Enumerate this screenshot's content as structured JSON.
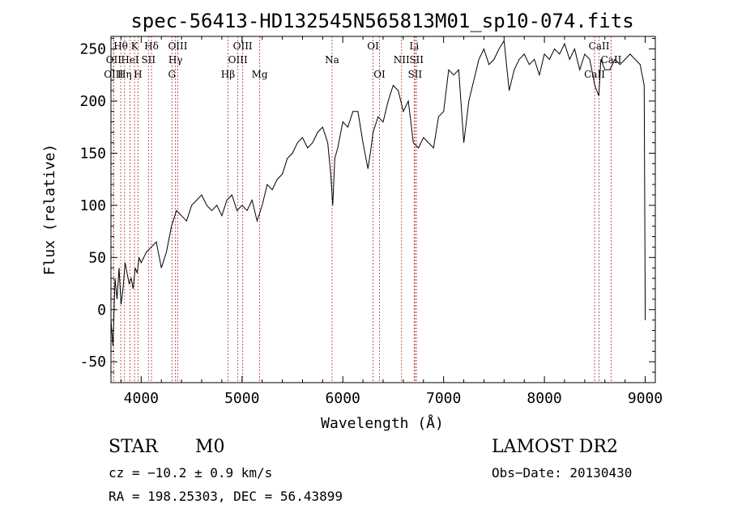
{
  "chart_data": {
    "type": "line",
    "title": "spec-56413-HD132545N565813M01_sp10-074.fits",
    "xlabel": "Wavelength (Å)",
    "ylabel": "Flux (relative)",
    "xlim": [
      3700,
      9100
    ],
    "ylim": [
      -70,
      262
    ],
    "x_ticks": [
      4000,
      5000,
      6000,
      7000,
      8000,
      9000
    ],
    "y_ticks": [
      -50,
      0,
      50,
      100,
      150,
      200,
      250
    ],
    "grid": false,
    "series": [
      {
        "x": [
          3700,
          3720,
          3740,
          3760,
          3780,
          3800,
          3820,
          3840,
          3860,
          3880,
          3900,
          3920,
          3940,
          3960,
          3980,
          4000,
          4050,
          4100,
          4150,
          4200,
          4250,
          4300,
          4350,
          4400,
          4450,
          4500,
          4550,
          4600,
          4650,
          4700,
          4750,
          4800,
          4850,
          4900,
          4950,
          5000,
          5050,
          5100,
          5150,
          5200,
          5250,
          5300,
          5350,
          5400,
          5450,
          5500,
          5550,
          5600,
          5650,
          5700,
          5750,
          5800,
          5850,
          5880,
          5900,
          5920,
          5950,
          6000,
          6050,
          6100,
          6150,
          6200,
          6250,
          6280,
          6300,
          6350,
          6400,
          6450,
          6500,
          6550,
          6600,
          6650,
          6700,
          6750,
          6800,
          6850,
          6900,
          6950,
          7000,
          7050,
          7100,
          7150,
          7200,
          7250,
          7300,
          7350,
          7400,
          7450,
          7500,
          7550,
          7600,
          7650,
          7700,
          7750,
          7800,
          7850,
          7900,
          7950,
          8000,
          8050,
          8100,
          8150,
          8200,
          8250,
          8300,
          8350,
          8400,
          8450,
          8500,
          8540,
          8560,
          8600,
          8650,
          8700,
          8750,
          8800,
          8850,
          8900,
          8950,
          8990,
          9000
        ],
        "y": [
          -10,
          -35,
          30,
          10,
          40,
          5,
          20,
          45,
          35,
          25,
          30,
          20,
          40,
          35,
          50,
          45,
          55,
          60,
          65,
          40,
          55,
          80,
          95,
          90,
          85,
          100,
          105,
          110,
          100,
          95,
          100,
          90,
          105,
          110,
          95,
          100,
          95,
          105,
          85,
          100,
          120,
          115,
          125,
          130,
          145,
          150,
          160,
          165,
          155,
          160,
          170,
          175,
          160,
          130,
          100,
          145,
          155,
          180,
          175,
          190,
          190,
          160,
          135,
          155,
          170,
          185,
          180,
          200,
          215,
          210,
          190,
          200,
          160,
          155,
          165,
          160,
          155,
          185,
          190,
          230,
          225,
          230,
          160,
          200,
          220,
          240,
          250,
          235,
          240,
          250,
          258,
          210,
          230,
          240,
          245,
          235,
          240,
          225,
          245,
          240,
          250,
          245,
          255,
          240,
          250,
          230,
          245,
          240,
          215,
          205,
          240,
          230,
          230,
          240,
          235,
          240,
          245,
          240,
          235,
          215,
          -10
        ]
      }
    ],
    "lines": [
      {
        "label": "Hθ",
        "x": 3797,
        "row": 0
      },
      {
        "label": "K",
        "x": 3934,
        "row": 0
      },
      {
        "label": "Hδ",
        "x": 4102,
        "row": 0
      },
      {
        "label": "OIII",
        "x": 4363,
        "row": 0
      },
      {
        "label": "OIII",
        "x": 5007,
        "row": 0
      },
      {
        "label": "OI",
        "x": 6300,
        "row": 0
      },
      {
        "label": "Li",
        "x": 6708,
        "row": 0
      },
      {
        "label": "CaII",
        "x": 8542,
        "row": 0
      },
      {
        "label": "OII",
        "x": 3727,
        "row": 1
      },
      {
        "label": "HeI",
        "x": 3889,
        "row": 1
      },
      {
        "label": "SII",
        "x": 4072,
        "row": 1
      },
      {
        "label": "Hγ",
        "x": 4340,
        "row": 1
      },
      {
        "label": "OIII",
        "x": 4959,
        "row": 1
      },
      {
        "label": "Na",
        "x": 5893,
        "row": 1
      },
      {
        "label": "NII",
        "x": 6583,
        "row": 1
      },
      {
        "label": "SII",
        "x": 6731,
        "row": 1
      },
      {
        "label": "CaII",
        "x": 8662,
        "row": 1
      },
      {
        "label": "OIII",
        "x": 3726,
        "row": 2
      },
      {
        "label": "Hη",
        "x": 3835,
        "row": 2
      },
      {
        "label": "H",
        "x": 3968,
        "row": 2
      },
      {
        "label": "G",
        "x": 4305,
        "row": 2
      },
      {
        "label": "Hβ",
        "x": 4861,
        "row": 2
      },
      {
        "label": "Mg",
        "x": 5175,
        "row": 2
      },
      {
        "label": "OI",
        "x": 6364,
        "row": 2
      },
      {
        "label": "SII",
        "x": 6716,
        "row": 2
      },
      {
        "label": "CaII",
        "x": 8498,
        "row": 2
      }
    ]
  },
  "info": {
    "class": "STAR",
    "subclass": "M0",
    "survey": "LAMOST DR2",
    "cz": "cz = −10.2 ± 0.9 km/s",
    "obs_date": "Obs−Date: 20130430",
    "radec": "RA = 198.25303, DEC =  56.43899"
  }
}
